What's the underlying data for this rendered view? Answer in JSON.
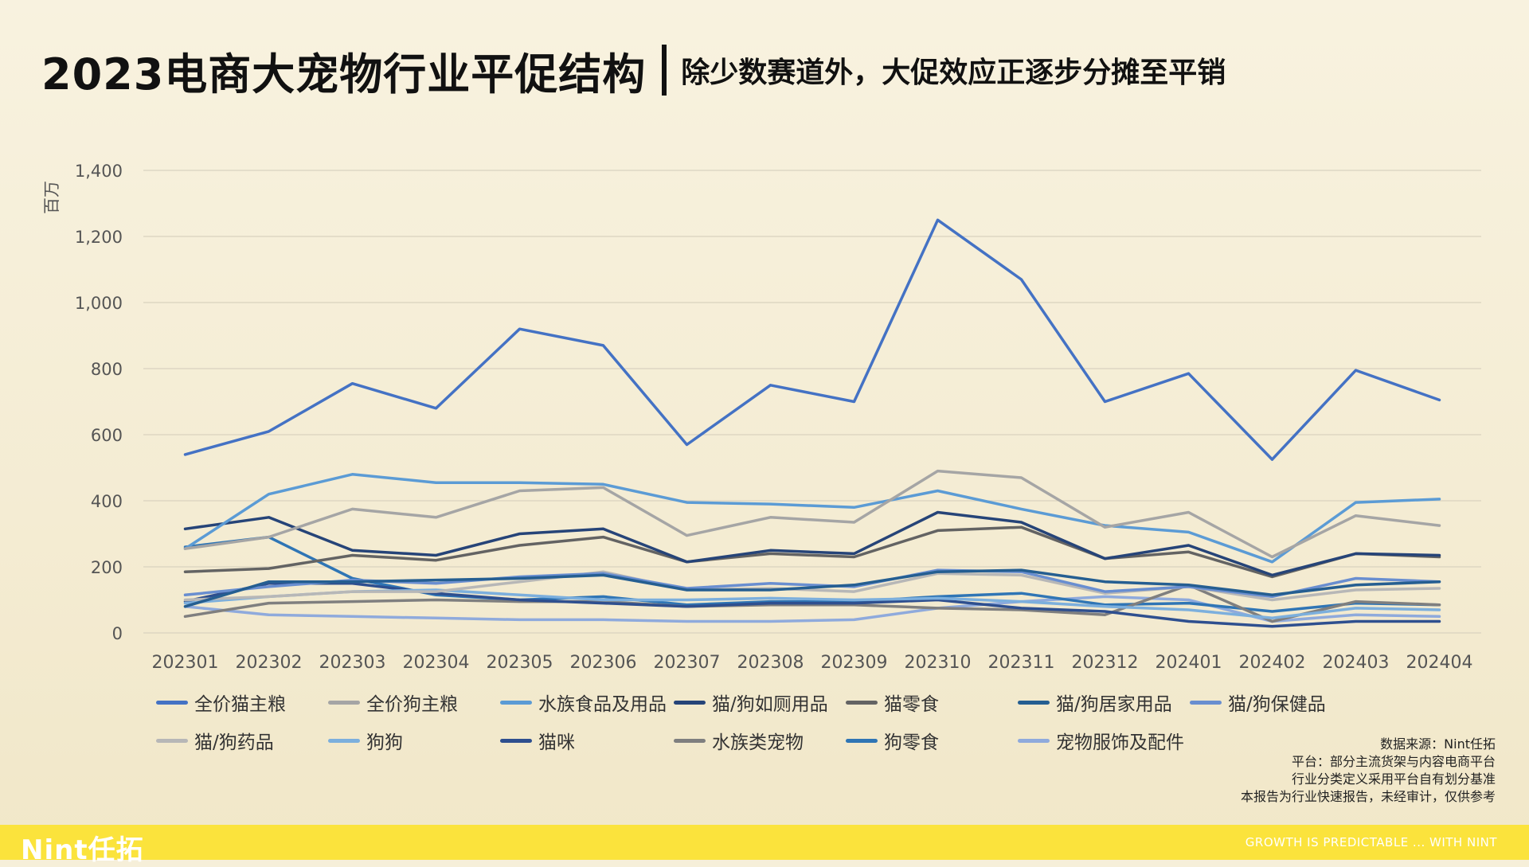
{
  "header": {
    "title": "2023电商大宠物行业平促结构",
    "subtitle": "除少数赛道外，大促效应正逐步分摊至平销"
  },
  "notes": {
    "source": "数据来源：Nint任拓",
    "platform": "平台：部分主流货架与内容电商平台",
    "definition": "行业分类定义采用平台自有划分基准",
    "disclaimer": "本报告为行业快速报告，未经审计，仅供参考"
  },
  "footer": {
    "logo": "Nint任拓",
    "slogan": "GROWTH IS PREDICTABLE ... WITH NINT"
  },
  "chart_data": {
    "type": "line",
    "title": "",
    "xlabel": "",
    "ylabel": "百万",
    "ylim": [
      0,
      1400
    ],
    "yticks": [
      0,
      200,
      400,
      600,
      800,
      1000,
      1200,
      1400
    ],
    "ytick_labels": [
      "0",
      "200",
      "400",
      "600",
      "800",
      "1,000",
      "1,200",
      "1,400"
    ],
    "grid": true,
    "legend_position": "bottom",
    "categories": [
      "202301",
      "202302",
      "202303",
      "202304",
      "202305",
      "202306",
      "202307",
      "202308",
      "202309",
      "202310",
      "202311",
      "202312",
      "202401",
      "202402",
      "202403",
      "202404"
    ],
    "series": [
      {
        "name": "全价猫主粮",
        "color": "#4472c4",
        "values": [
          540,
          610,
          755,
          680,
          920,
          870,
          570,
          750,
          700,
          1250,
          1070,
          700,
          785,
          525,
          795,
          705
        ]
      },
      {
        "name": "全价狗主粮",
        "color": "#a5a5a5",
        "values": [
          255,
          290,
          375,
          350,
          430,
          440,
          295,
          350,
          335,
          490,
          470,
          320,
          365,
          230,
          355,
          325
        ]
      },
      {
        "name": "水族食品及用品",
        "color": "#5b9bd5",
        "values": [
          255,
          420,
          480,
          455,
          455,
          450,
          395,
          390,
          380,
          430,
          375,
          325,
          305,
          215,
          395,
          405
        ]
      },
      {
        "name": "猫/狗如厕用品",
        "color": "#264478",
        "values": [
          315,
          350,
          250,
          235,
          300,
          315,
          215,
          250,
          240,
          365,
          335,
          225,
          265,
          175,
          240,
          235
        ]
      },
      {
        "name": "猫零食",
        "color": "#636363",
        "values": [
          185,
          195,
          235,
          220,
          265,
          290,
          215,
          240,
          230,
          310,
          320,
          225,
          245,
          170,
          240,
          230
        ]
      },
      {
        "name": "猫/狗居家用品",
        "color": "#255e91",
        "values": [
          80,
          155,
          155,
          160,
          165,
          175,
          130,
          130,
          145,
          185,
          190,
          155,
          145,
          115,
          145,
          155
        ]
      },
      {
        "name": "猫/狗保健品",
        "color": "#698ed0",
        "values": [
          115,
          140,
          160,
          150,
          170,
          180,
          135,
          150,
          140,
          190,
          185,
          125,
          140,
          110,
          165,
          155
        ]
      },
      {
        "name": "猫/狗药品",
        "color": "#b7b7b7",
        "values": [
          100,
          110,
          125,
          125,
          155,
          185,
          130,
          135,
          125,
          180,
          175,
          120,
          140,
          100,
          130,
          135
        ]
      },
      {
        "name": "狗狗",
        "color": "#7cafdd",
        "values": [
          90,
          110,
          125,
          130,
          115,
          100,
          100,
          105,
          100,
          105,
          95,
          80,
          70,
          45,
          75,
          70
        ]
      },
      {
        "name": "猫咪",
        "color": "#2e4f8f",
        "values": [
          95,
          150,
          150,
          120,
          100,
          90,
          80,
          90,
          90,
          100,
          75,
          65,
          35,
          20,
          35,
          35
        ]
      },
      {
        "name": "水族类宠物",
        "color": "#7f7f7f",
        "values": [
          50,
          90,
          95,
          100,
          95,
          95,
          80,
          85,
          85,
          75,
          70,
          55,
          145,
          35,
          95,
          85
        ]
      },
      {
        "name": "狗零食",
        "color": "#2f75b5",
        "values": [
          260,
          290,
          165,
          115,
          100,
          110,
          85,
          95,
          95,
          110,
          120,
          85,
          90,
          65,
          90,
          85
        ]
      },
      {
        "name": "宠物服饰及配件",
        "color": "#8faadc",
        "values": [
          80,
          55,
          50,
          45,
          40,
          40,
          35,
          35,
          40,
          75,
          95,
          110,
          100,
          35,
          55,
          50
        ]
      }
    ]
  }
}
